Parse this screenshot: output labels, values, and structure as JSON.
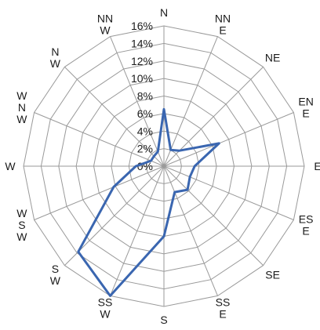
{
  "chart_data": {
    "type": "radar",
    "title": "",
    "directions": [
      [
        "N"
      ],
      [
        "NN",
        "E"
      ],
      [
        "NE"
      ],
      [
        "EN",
        "E"
      ],
      [
        "E"
      ],
      [
        "ES",
        "E"
      ],
      [
        "SE"
      ],
      [
        "SS",
        "E"
      ],
      [
        "S"
      ],
      [
        "SS",
        "W"
      ],
      [
        "S",
        "W"
      ],
      [
        "W",
        "S",
        "W"
      ],
      [
        "W"
      ],
      [
        "W",
        "N",
        "W"
      ],
      [
        "N",
        "W"
      ],
      [
        "NN",
        "W"
      ]
    ],
    "tick_labels": [
      "0%",
      "2%",
      "4%",
      "6%",
      "8%",
      "10%",
      "12%",
      "14%",
      "16%"
    ],
    "ylim": [
      0,
      16
    ],
    "grid": true,
    "series": [
      {
        "color": "#3a66b0",
        "values": [
          6.5,
          2.0,
          2.5,
          6.8,
          3.5,
          3.2,
          3.8,
          3.2,
          8.0,
          16.0,
          13.8,
          6.2,
          3.2,
          1.6,
          1.6,
          1.8
        ]
      }
    ]
  },
  "colors": {
    "grid": "#9a9a9a",
    "series": "#3a66b0",
    "text": "#1a1a1a"
  }
}
